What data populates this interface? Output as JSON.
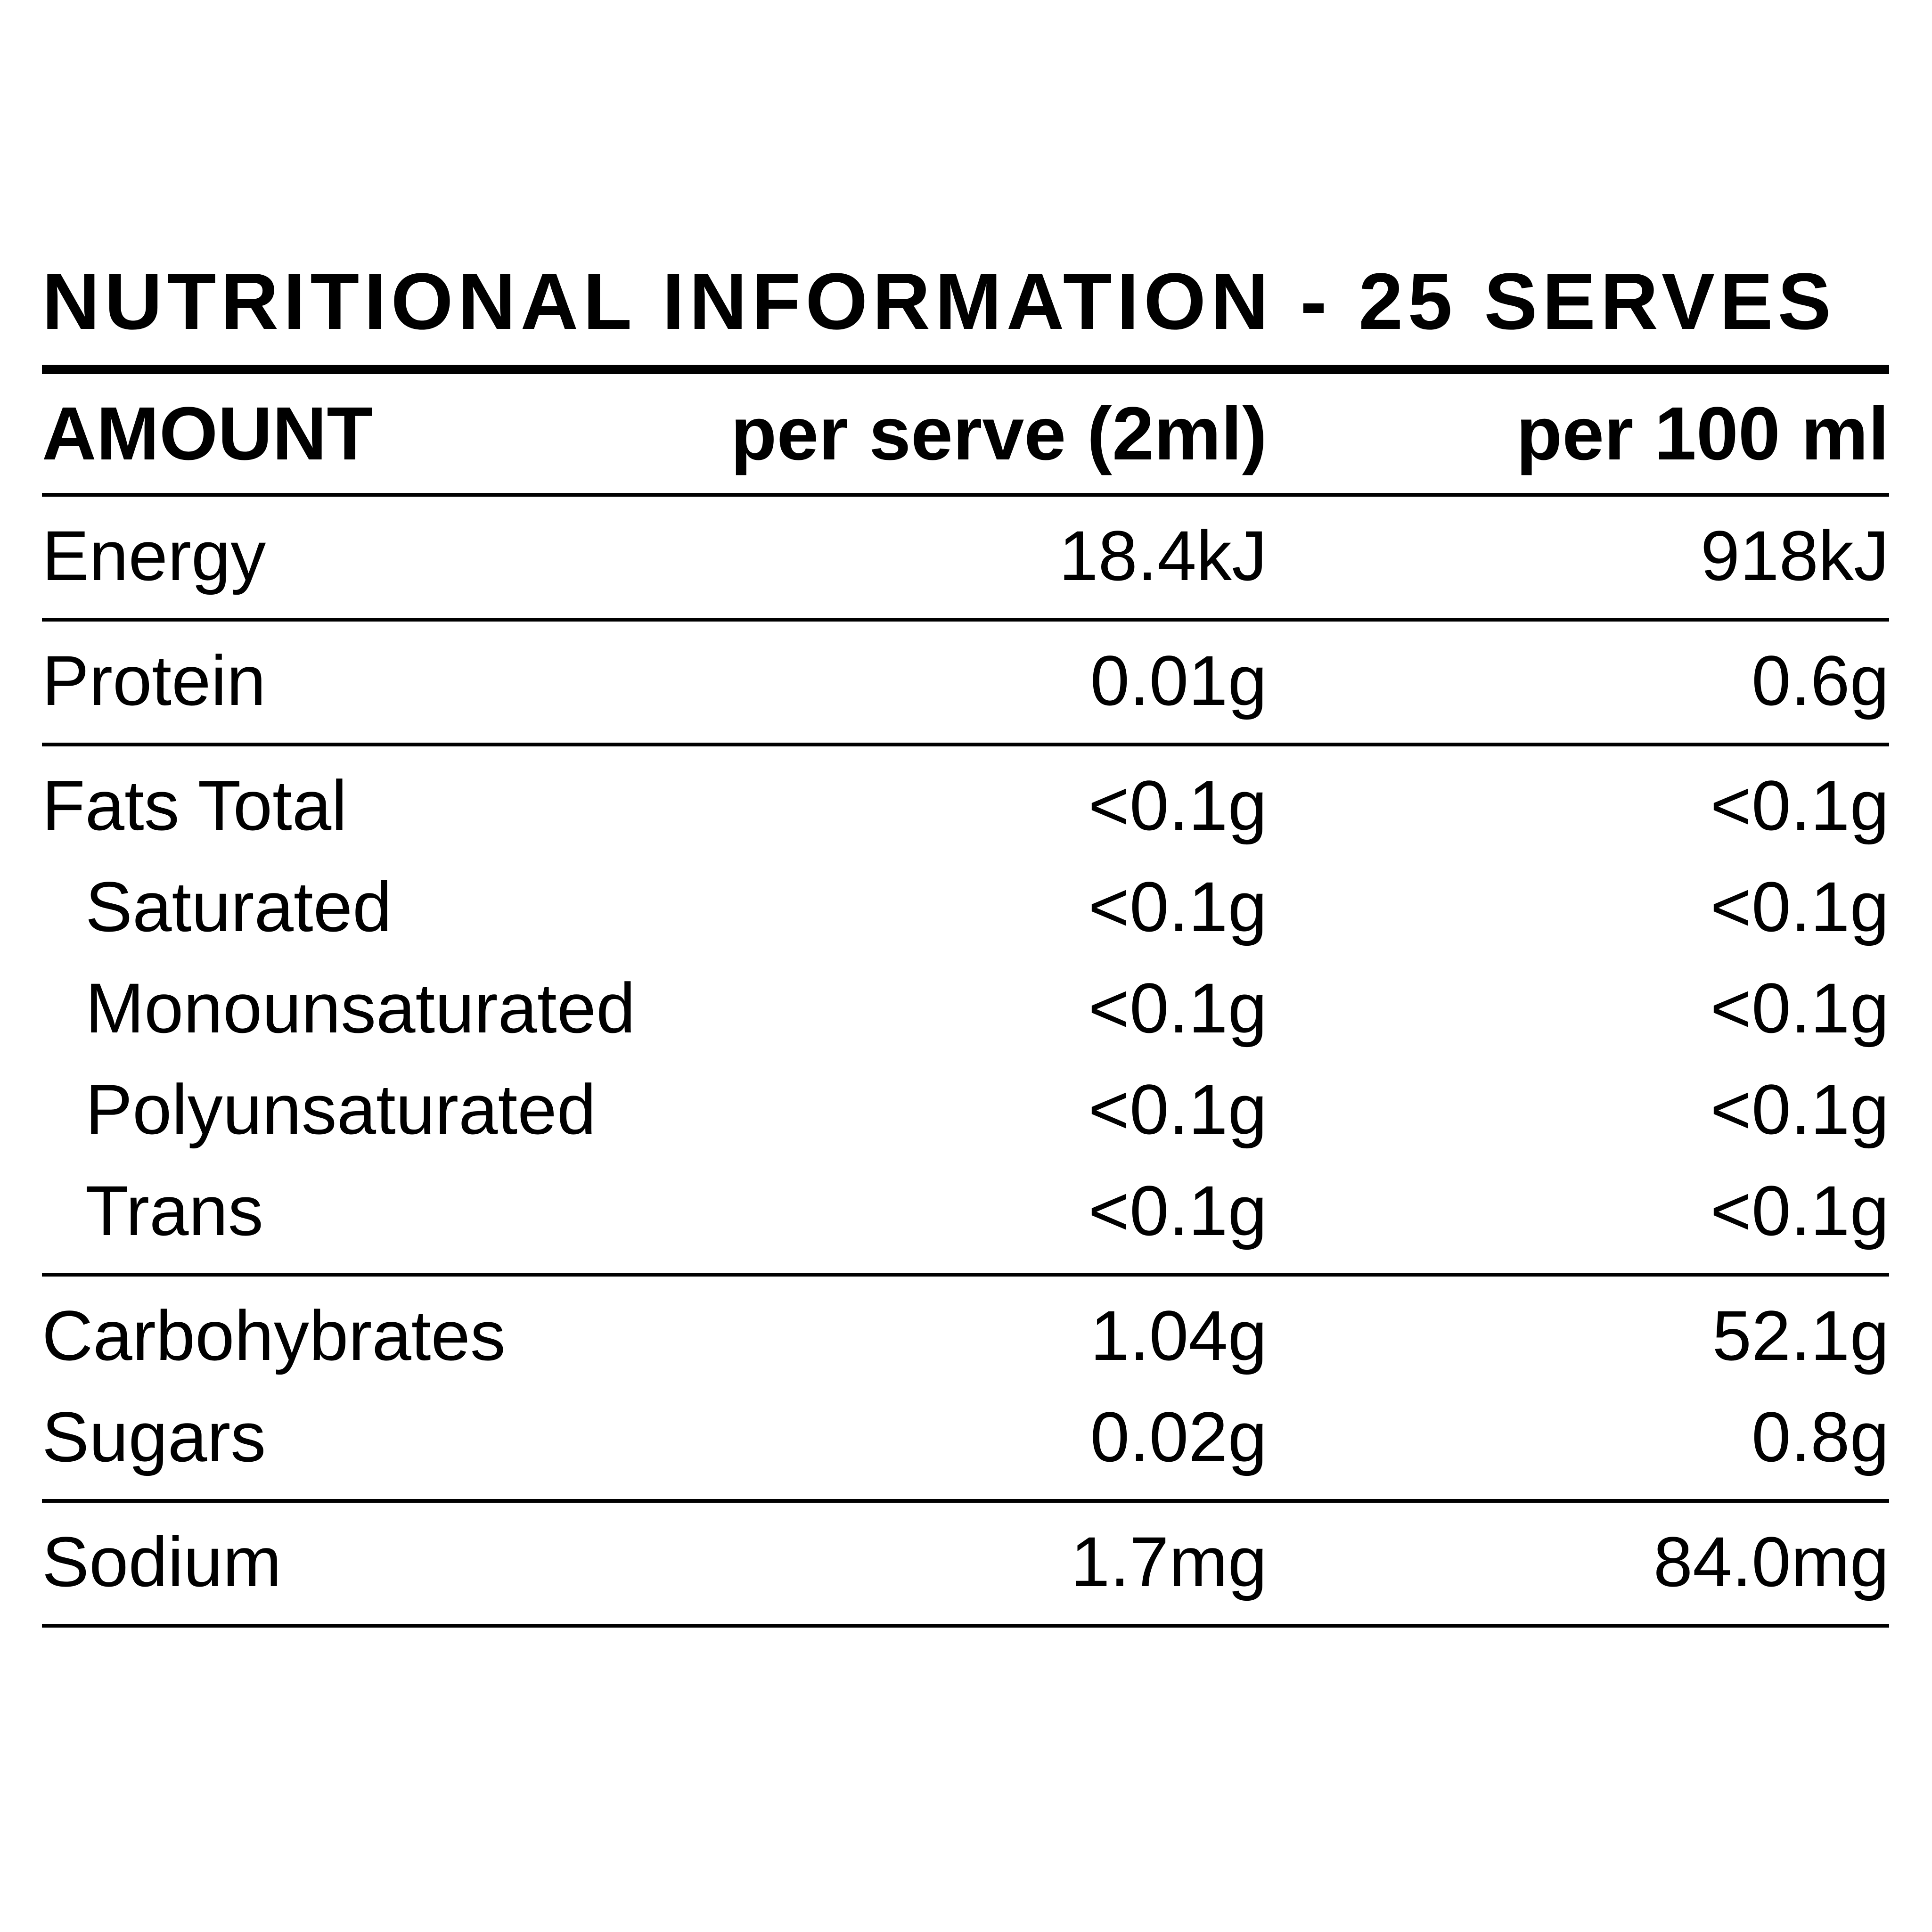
{
  "title": "NUTRITIONAL INFORMATION - 25 SERVES",
  "header": {
    "amount": "AMOUNT",
    "per_serve": "per serve (2ml)",
    "per_100": "per 100 ml"
  },
  "rows": [
    {
      "label": "Energy",
      "per_serve": "18.4kJ",
      "per_100": "918kJ"
    },
    {
      "label": "Protein",
      "per_serve": "0.01g",
      "per_100": "0.6g"
    },
    {
      "label": "Fats Total",
      "per_serve": "<0.1g",
      "per_100": "<0.1g"
    },
    {
      "label": "Saturated",
      "per_serve": "<0.1g",
      "per_100": "<0.1g"
    },
    {
      "label": "Monounsaturated",
      "per_serve": "<0.1g",
      "per_100": "<0.1g"
    },
    {
      "label": "Polyunsaturated",
      "per_serve": "<0.1g",
      "per_100": "<0.1g"
    },
    {
      "label": "Trans",
      "per_serve": "<0.1g",
      "per_100": "<0.1g"
    },
    {
      "label": "Carbohybrates",
      "per_serve": "1.04g",
      "per_100": "52.1g"
    },
    {
      "label": "Sugars",
      "per_serve": "0.02g",
      "per_100": "0.8g"
    },
    {
      "label": "Sodium",
      "per_serve": "1.7mg",
      "per_100": "84.0mg"
    }
  ]
}
